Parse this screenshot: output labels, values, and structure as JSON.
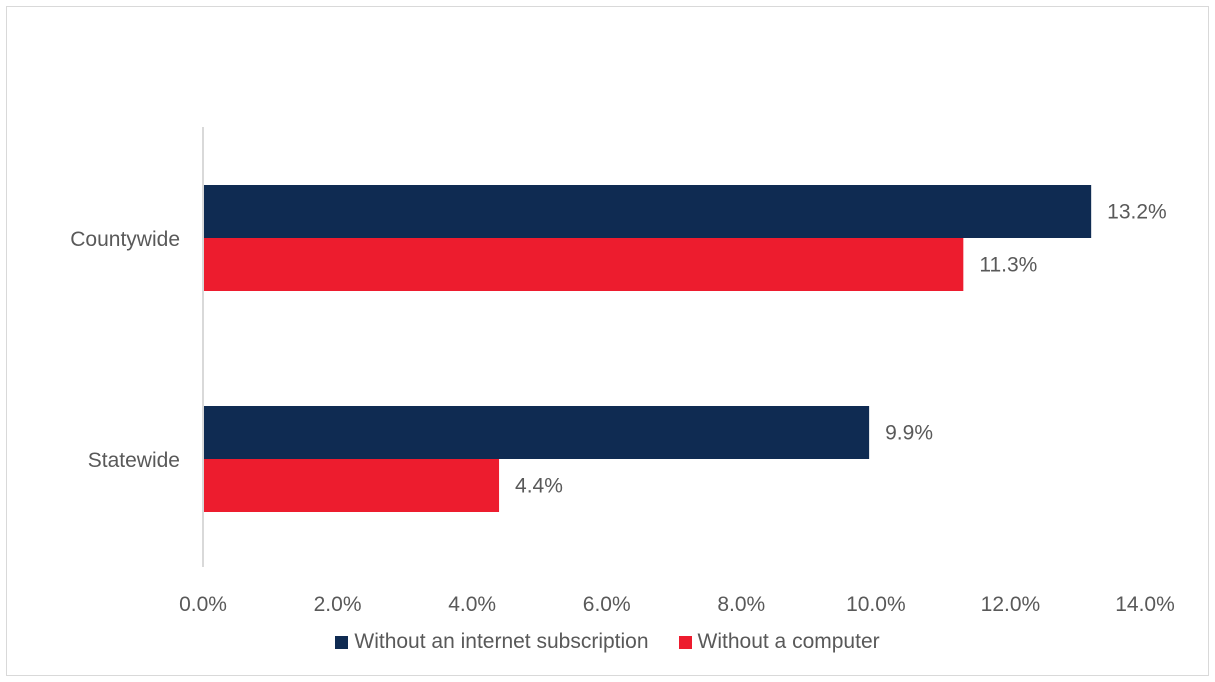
{
  "chart_data": {
    "type": "bar",
    "orientation": "horizontal",
    "categories": [
      "Countywide",
      "Statewide"
    ],
    "series": [
      {
        "name": "Without an internet subscription",
        "values": [
          13.2,
          9.9
        ],
        "labels": [
          "13.2%",
          "9.9%"
        ],
        "color": "#0f2b52"
      },
      {
        "name": "Without a computer",
        "values": [
          11.3,
          4.4
        ],
        "labels": [
          "11.3%",
          "4.4%"
        ],
        "color": "#ed1c2e"
      }
    ],
    "xlim": [
      0,
      14
    ],
    "xticks": [
      0,
      2,
      4,
      6,
      8,
      10,
      12,
      14
    ],
    "xtick_labels": [
      "0.0%",
      "2.0%",
      "4.0%",
      "6.0%",
      "8.0%",
      "10.0%",
      "12.0%",
      "14.0%"
    ],
    "grid": false,
    "legend_position": "bottom"
  }
}
